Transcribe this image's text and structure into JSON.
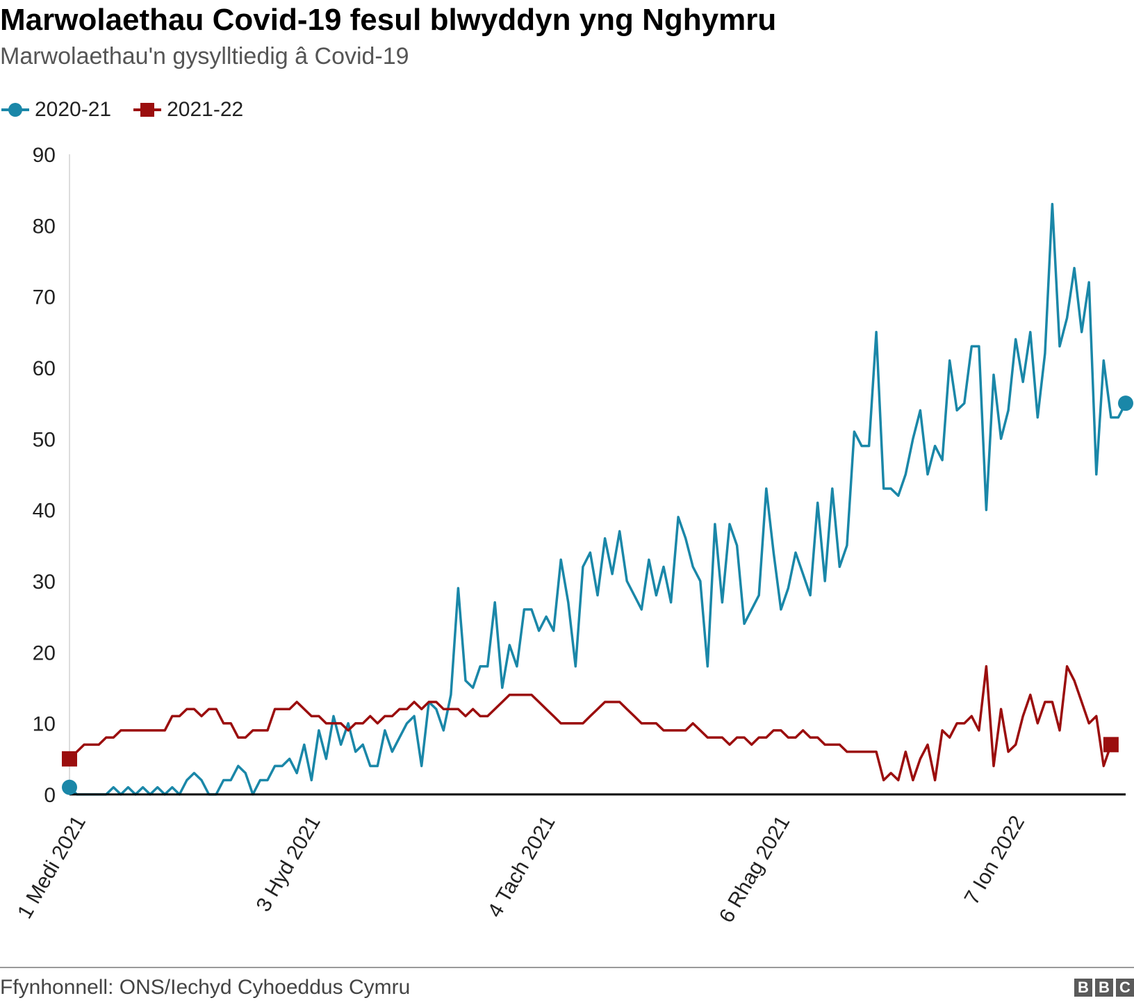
{
  "header": {
    "title": "Marwolaethau Covid-19 fesul blwyddyn yng Nghymru",
    "subtitle": "Marwolaethau'n gysylltiedig â Covid-19"
  },
  "legend": [
    {
      "label": "2020-21",
      "color": "#1a87a8",
      "marker": "circle"
    },
    {
      "label": "2021-22",
      "color": "#9b0e0e",
      "marker": "square"
    }
  ],
  "footer": {
    "source": "Ffynhonnell: ONS/Iechyd Cyhoeddus Cymru",
    "logo": [
      "B",
      "B",
      "C"
    ]
  },
  "chart_data": {
    "type": "line",
    "title": "Marwolaethau Covid-19 fesul blwyddyn yng Nghymru",
    "subtitle": "Marwolaethau'n gysylltiedig â Covid-19",
    "xlabel": "",
    "ylabel": "",
    "ylim": [
      0,
      90
    ],
    "y_ticks": [
      0,
      10,
      20,
      30,
      40,
      50,
      60,
      70,
      80,
      90
    ],
    "x_ticks": [
      {
        "index": 0,
        "label": "1 Medi 2021"
      },
      {
        "index": 32,
        "label": "3 Hyd 2021"
      },
      {
        "index": 64,
        "label": "4 Tach 2021"
      },
      {
        "index": 96,
        "label": "6 Rhag 2021"
      },
      {
        "index": 128,
        "label": "7 Ion 2022"
      }
    ],
    "grid": false,
    "legend_position": "top-left",
    "x_start_date": "2021-09-01",
    "series": [
      {
        "name": "2020-21",
        "color": "#1a87a8",
        "values": [
          1,
          0,
          0,
          0,
          0,
          0,
          1,
          0,
          1,
          0,
          1,
          0,
          1,
          0,
          1,
          0,
          2,
          3,
          2,
          0,
          0,
          2,
          2,
          4,
          3,
          0,
          2,
          2,
          4,
          4,
          5,
          3,
          7,
          2,
          9,
          5,
          11,
          7,
          10,
          6,
          7,
          4,
          4,
          9,
          6,
          8,
          10,
          11,
          4,
          13,
          12,
          9,
          14,
          29,
          16,
          15,
          18,
          18,
          27,
          15,
          21,
          18,
          26,
          26,
          23,
          25,
          23,
          33,
          27,
          18,
          32,
          34,
          28,
          36,
          31,
          37,
          30,
          28,
          26,
          33,
          28,
          32,
          27,
          39,
          36,
          32,
          30,
          18,
          38,
          27,
          38,
          35,
          24,
          26,
          28,
          43,
          34,
          26,
          29,
          34,
          31,
          28,
          41,
          30,
          43,
          32,
          35,
          51,
          49,
          49,
          65,
          43,
          43,
          42,
          45,
          50,
          54,
          45,
          49,
          47,
          61,
          54,
          55,
          63,
          63,
          40,
          59,
          50,
          54,
          64,
          58,
          65,
          53,
          62,
          83,
          63,
          67,
          74,
          65,
          72,
          45,
          61,
          53,
          53,
          55
        ]
      },
      {
        "name": "2021-22",
        "color": "#9b0e0e",
        "values": [
          5,
          6,
          7,
          7,
          7,
          8,
          8,
          9,
          9,
          9,
          9,
          9,
          9,
          9,
          11,
          11,
          12,
          12,
          11,
          12,
          12,
          10,
          10,
          8,
          8,
          9,
          9,
          9,
          12,
          12,
          12,
          13,
          12,
          11,
          11,
          10,
          10,
          10,
          9,
          10,
          10,
          11,
          10,
          11,
          11,
          12,
          12,
          13,
          12,
          13,
          13,
          12,
          12,
          12,
          11,
          12,
          11,
          11,
          12,
          13,
          14,
          14,
          14,
          14,
          13,
          12,
          11,
          10,
          10,
          10,
          10,
          11,
          12,
          13,
          13,
          13,
          12,
          11,
          10,
          10,
          10,
          9,
          9,
          9,
          9,
          10,
          9,
          8,
          8,
          8,
          7,
          8,
          8,
          7,
          8,
          8,
          9,
          9,
          8,
          8,
          9,
          8,
          8,
          7,
          7,
          7,
          6,
          6,
          6,
          6,
          6,
          2,
          3,
          2,
          6,
          2,
          5,
          7,
          2,
          9,
          8,
          10,
          10,
          11,
          9,
          18,
          4,
          12,
          6,
          7,
          11,
          14,
          10,
          13,
          13,
          9,
          18,
          16,
          13,
          10,
          11,
          4,
          7
        ]
      }
    ]
  }
}
